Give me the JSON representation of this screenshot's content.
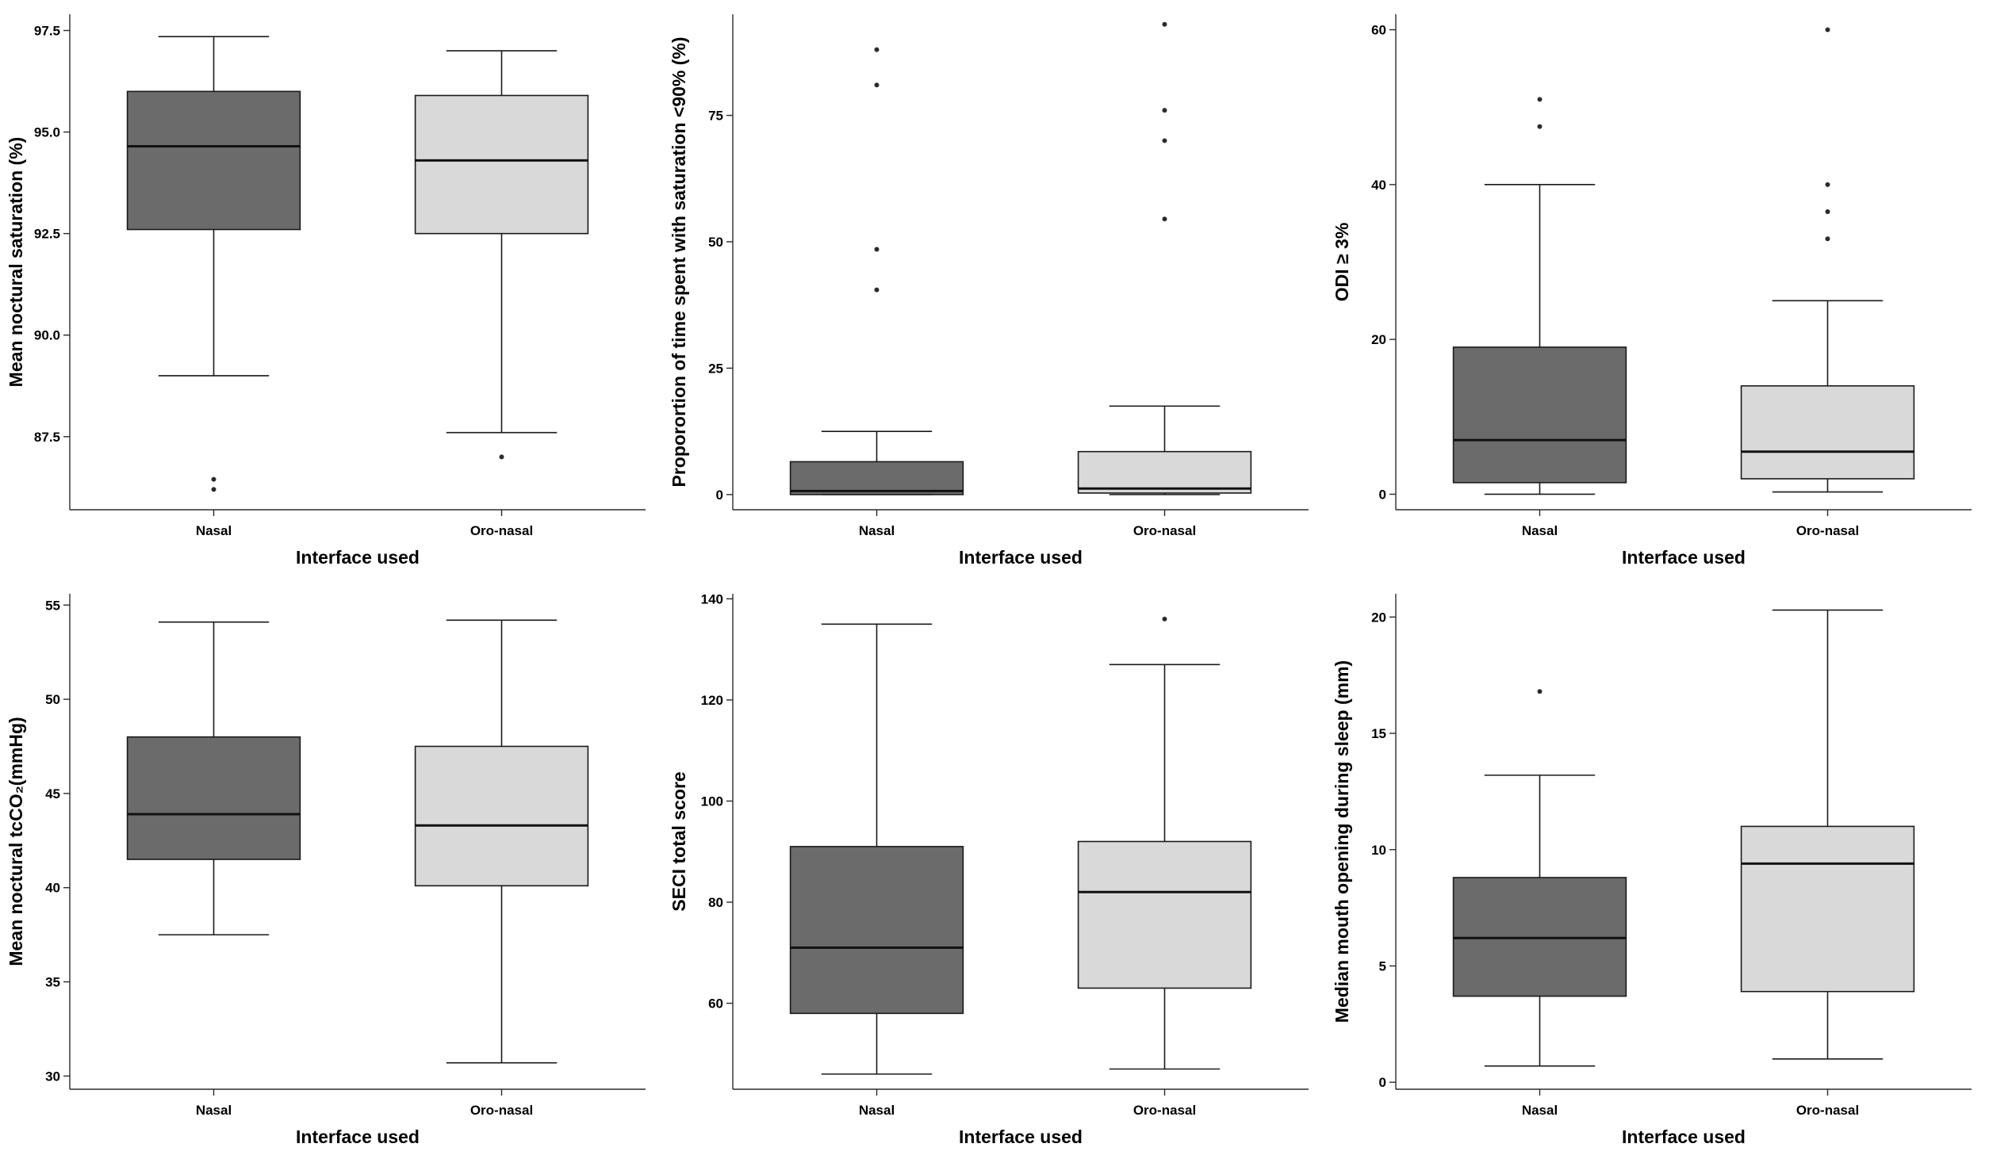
{
  "page": {
    "background": "#ffffff"
  },
  "colors": {
    "box_fills": [
      "#6b6b6b",
      "#d9d9d9"
    ],
    "line": "#1a1a1a",
    "text": "#000000"
  },
  "chart_data": [
    {
      "type": "box",
      "title": "",
      "ylabel": "Mean noctural saturation (%)",
      "xlabel": "Interface used",
      "categories": [
        "Nasal",
        "Oro-nasal"
      ],
      "ylim": [
        85.7,
        97.9
      ],
      "yticks": [
        87.5,
        90.0,
        92.5,
        95.0,
        97.5
      ],
      "ytick_labels": [
        "87.5",
        "90.0",
        "92.5",
        "95.0",
        "97.5"
      ],
      "legend": "none",
      "grid": false,
      "series": [
        {
          "name": "Nasal",
          "whisker_low": 89.0,
          "q1": 92.6,
          "median": 94.65,
          "q3": 96.0,
          "whisker_high": 97.35,
          "outliers": [
            86.45,
            86.2
          ]
        },
        {
          "name": "Oro-nasal",
          "whisker_low": 87.6,
          "q1": 92.5,
          "median": 94.3,
          "q3": 95.9,
          "whisker_high": 97.0,
          "outliers": [
            87.0
          ]
        }
      ]
    },
    {
      "type": "box",
      "title": "",
      "ylabel": "Proporortion of time spent with saturation <90% (%)",
      "xlabel": "Interface used",
      "categories": [
        "Nasal",
        "Oro-nasal"
      ],
      "ylim": [
        -3,
        95
      ],
      "yticks": [
        0,
        25,
        50,
        75
      ],
      "ytick_labels": [
        "0",
        "25",
        "50",
        "75"
      ],
      "legend": "none",
      "grid": false,
      "series": [
        {
          "name": "Nasal",
          "whisker_low": 0,
          "q1": 0,
          "median": 0.7,
          "q3": 6.5,
          "whisker_high": 12.5,
          "outliers": [
            40.5,
            48.5,
            81,
            88
          ]
        },
        {
          "name": "Oro-nasal",
          "whisker_low": 0,
          "q1": 0.3,
          "median": 1.2,
          "q3": 8.5,
          "whisker_high": 17.5,
          "outliers": [
            54.5,
            70,
            76,
            93
          ]
        }
      ]
    },
    {
      "type": "box",
      "title": "",
      "ylabel": "ODI ≥ 3%",
      "xlabel": "Interface used",
      "categories": [
        "Nasal",
        "Oro-nasal"
      ],
      "ylim": [
        -2,
        62
      ],
      "yticks": [
        0,
        20,
        40,
        60
      ],
      "ytick_labels": [
        "0",
        "20",
        "40",
        "60"
      ],
      "legend": "none",
      "grid": false,
      "series": [
        {
          "name": "Nasal",
          "whisker_low": 0,
          "q1": 1.5,
          "median": 7,
          "q3": 19,
          "whisker_high": 40,
          "outliers": [
            47.5,
            51
          ]
        },
        {
          "name": "Oro-nasal",
          "whisker_low": 0.3,
          "q1": 2,
          "median": 5.5,
          "q3": 14,
          "whisker_high": 25,
          "outliers": [
            33,
            36.5,
            40,
            60
          ]
        }
      ]
    },
    {
      "type": "box",
      "title": "",
      "ylabel": "Mean noctural tcCO₂(mmHg)",
      "xlabel": "Interface used",
      "categories": [
        "Nasal",
        "Oro-nasal"
      ],
      "ylim": [
        29.3,
        55.6
      ],
      "yticks": [
        30,
        35,
        40,
        45,
        50,
        55
      ],
      "ytick_labels": [
        "30",
        "35",
        "40",
        "45",
        "50",
        "55"
      ],
      "legend": "none",
      "grid": false,
      "series": [
        {
          "name": "Nasal",
          "whisker_low": 37.5,
          "q1": 41.5,
          "median": 43.9,
          "q3": 48.0,
          "whisker_high": 54.1,
          "outliers": []
        },
        {
          "name": "Oro-nasal",
          "whisker_low": 30.7,
          "q1": 40.1,
          "median": 43.3,
          "q3": 47.5,
          "whisker_high": 54.2,
          "outliers": []
        }
      ]
    },
    {
      "type": "box",
      "title": "",
      "ylabel": "SECI total score",
      "xlabel": "Interface used",
      "categories": [
        "Nasal",
        "Oro-nasal"
      ],
      "ylim": [
        43,
        141
      ],
      "yticks": [
        60,
        80,
        100,
        120,
        140
      ],
      "ytick_labels": [
        "60",
        "80",
        "100",
        "120",
        "140"
      ],
      "legend": "none",
      "grid": false,
      "series": [
        {
          "name": "Nasal",
          "whisker_low": 46,
          "q1": 58,
          "median": 71,
          "q3": 91,
          "whisker_high": 135,
          "outliers": []
        },
        {
          "name": "Oro-nasal",
          "whisker_low": 47,
          "q1": 63,
          "median": 82,
          "q3": 92,
          "whisker_high": 127,
          "outliers": [
            136
          ]
        }
      ]
    },
    {
      "type": "box",
      "title": "",
      "ylabel": "Median mouth opening during sleep (mm)",
      "xlabel": "Interface used",
      "categories": [
        "Nasal",
        "Oro-nasal"
      ],
      "ylim": [
        -0.3,
        21
      ],
      "yticks": [
        0,
        5,
        10,
        15,
        20
      ],
      "ytick_labels": [
        "0",
        "5",
        "10",
        "15",
        "20"
      ],
      "legend": "none",
      "grid": false,
      "series": [
        {
          "name": "Nasal",
          "whisker_low": 0.7,
          "q1": 3.7,
          "median": 6.2,
          "q3": 8.8,
          "whisker_high": 13.2,
          "outliers": [
            16.8
          ]
        },
        {
          "name": "Oro-nasal",
          "whisker_low": 1.0,
          "q1": 3.9,
          "median": 9.4,
          "q3": 11.0,
          "whisker_high": 20.3,
          "outliers": []
        }
      ]
    }
  ]
}
